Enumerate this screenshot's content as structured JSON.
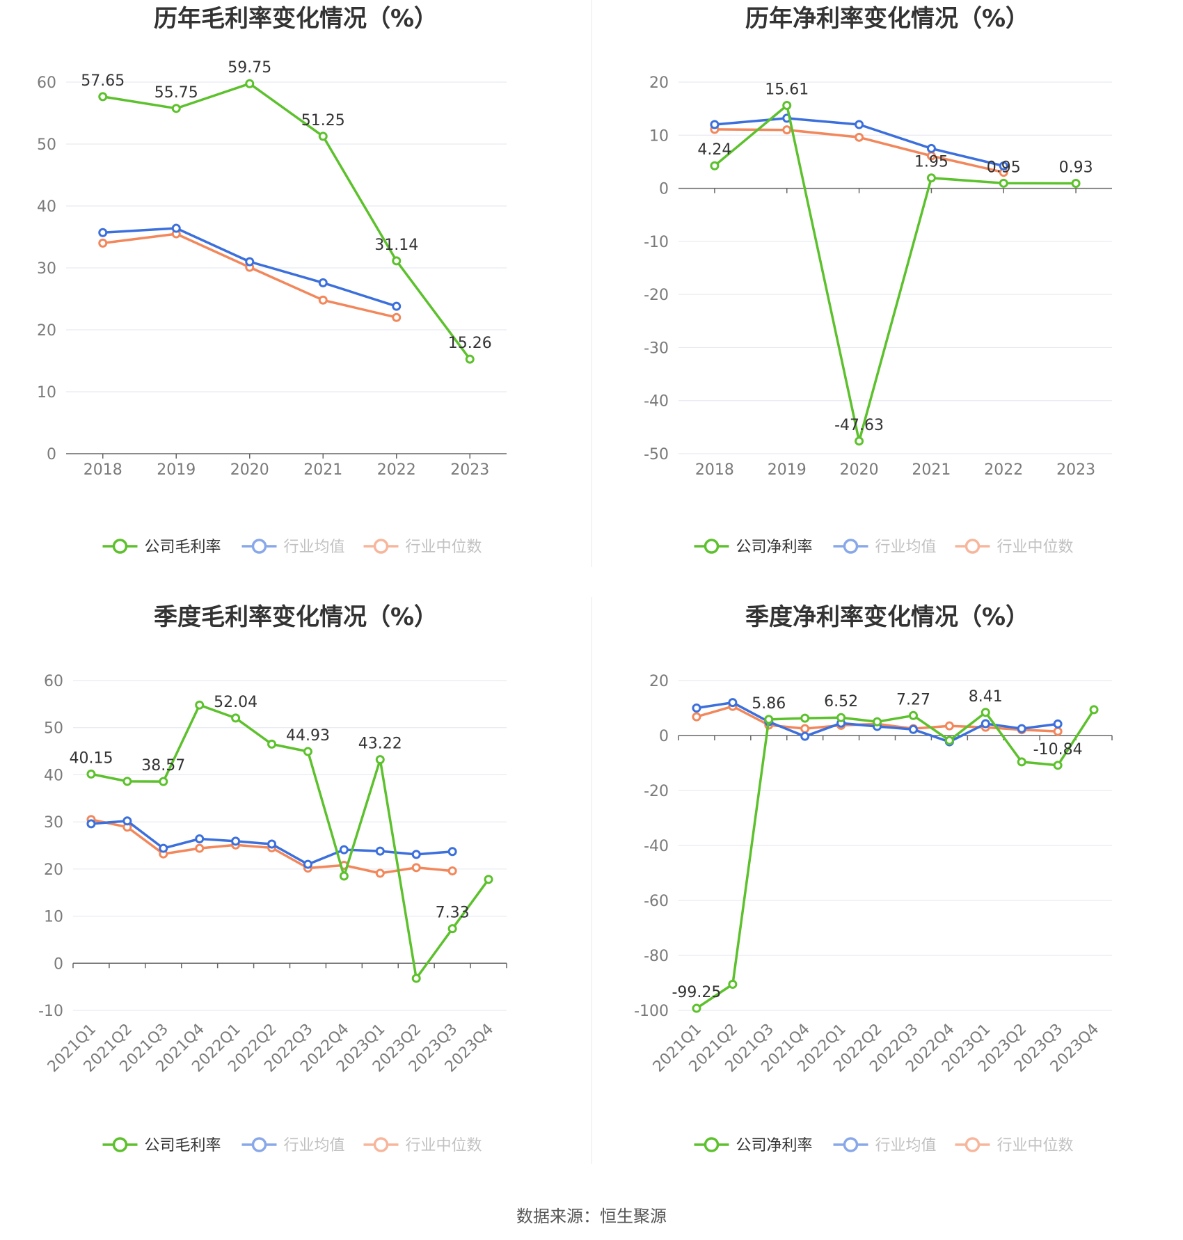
{
  "source": "数据来源：恒生聚源",
  "colors": {
    "company": "#5cc12c",
    "avg": "#3b6fdc",
    "median": "#f2875b"
  },
  "chart_data": [
    {
      "id": "annual-gross",
      "type": "line",
      "title": "历年毛利率变化情况（%）",
      "categories": [
        "2018",
        "2019",
        "2020",
        "2021",
        "2022",
        "2023"
      ],
      "ylim": [
        0,
        60
      ],
      "yticks": [
        0,
        10,
        20,
        30,
        40,
        50,
        60
      ],
      "rotate_x": false,
      "series": [
        {
          "name": "公司毛利率",
          "key": "company",
          "values": [
            57.65,
            55.75,
            59.75,
            51.25,
            31.14,
            15.26
          ]
        },
        {
          "name": "行业均值",
          "key": "avg",
          "values": [
            35.7,
            36.4,
            31.0,
            27.6,
            23.8,
            null
          ]
        },
        {
          "name": "行业中位数",
          "key": "median",
          "values": [
            34.0,
            35.5,
            30.1,
            24.8,
            22.0,
            null
          ]
        }
      ],
      "data_labels": [
        "57.65",
        "55.75",
        "59.75",
        "51.25",
        "31.14",
        "15.26"
      ]
    },
    {
      "id": "annual-net",
      "type": "line",
      "title": "历年净利率变化情况（%）",
      "categories": [
        "2018",
        "2019",
        "2020",
        "2021",
        "2022",
        "2023"
      ],
      "ylim": [
        -50,
        20
      ],
      "yticks": [
        -50,
        -40,
        -30,
        -20,
        -10,
        0,
        10,
        20
      ],
      "rotate_x": false,
      "series": [
        {
          "name": "公司净利率",
          "key": "company",
          "values": [
            4.24,
            15.61,
            -47.63,
            1.95,
            0.95,
            0.93
          ]
        },
        {
          "name": "行业均值",
          "key": "avg",
          "values": [
            12.0,
            13.2,
            12.0,
            7.5,
            4.2,
            null
          ]
        },
        {
          "name": "行业中位数",
          "key": "median",
          "values": [
            11.1,
            11.0,
            9.6,
            6.1,
            3.0,
            null
          ]
        }
      ],
      "data_labels": [
        "4.24",
        "15.61",
        "-47.63",
        "1.95",
        "0.95",
        "0.93"
      ]
    },
    {
      "id": "quarterly-gross",
      "type": "line",
      "title": "季度毛利率变化情况（%）",
      "categories": [
        "2021Q1",
        "2021Q2",
        "2021Q3",
        "2021Q4",
        "2022Q1",
        "2022Q2",
        "2022Q3",
        "2022Q4",
        "2023Q1",
        "2023Q2",
        "2023Q3",
        "2023Q4"
      ],
      "ylim": [
        -10,
        60
      ],
      "yticks": [
        -10,
        0,
        10,
        20,
        30,
        40,
        50,
        60
      ],
      "rotate_x": true,
      "series": [
        {
          "name": "公司毛利率",
          "key": "company",
          "values": [
            40.15,
            38.6,
            38.57,
            54.8,
            52.04,
            46.5,
            44.93,
            18.5,
            43.22,
            -3.2,
            7.33,
            17.8
          ]
        },
        {
          "name": "行业均值",
          "key": "avg",
          "values": [
            29.6,
            30.2,
            24.4,
            26.4,
            25.9,
            25.3,
            21.0,
            24.1,
            23.8,
            23.1,
            23.7,
            null
          ]
        },
        {
          "name": "行业中位数",
          "key": "median",
          "values": [
            30.5,
            28.9,
            23.2,
            24.4,
            25.1,
            24.5,
            20.2,
            20.8,
            19.1,
            20.3,
            19.6,
            null
          ]
        }
      ],
      "data_labels": [
        "40.15",
        "",
        "38.57",
        "",
        "52.04",
        "",
        "44.93",
        "",
        "43.22",
        "",
        "7.33",
        ""
      ]
    },
    {
      "id": "quarterly-net",
      "type": "line",
      "title": "季度净利率变化情况（%）",
      "categories": [
        "2021Q1",
        "2021Q2",
        "2021Q3",
        "2021Q4",
        "2022Q1",
        "2022Q2",
        "2022Q3",
        "2022Q4",
        "2023Q1",
        "2023Q2",
        "2023Q3",
        "2023Q4"
      ],
      "ylim": [
        -100,
        20
      ],
      "yticks": [
        -100,
        -80,
        -60,
        -40,
        -20,
        0,
        20
      ],
      "rotate_x": true,
      "series": [
        {
          "name": "公司净利率",
          "key": "company",
          "values": [
            -99.25,
            -90.5,
            5.86,
            6.3,
            6.52,
            5.0,
            7.27,
            -1.8,
            8.41,
            -9.6,
            -10.84,
            9.4
          ]
        },
        {
          "name": "行业均值",
          "key": "avg",
          "values": [
            10.0,
            12.0,
            5.0,
            -0.3,
            4.5,
            3.3,
            2.2,
            -2.3,
            4.3,
            2.5,
            4.2,
            null
          ]
        },
        {
          "name": "行业中位数",
          "key": "median",
          "values": [
            6.8,
            10.6,
            3.8,
            2.5,
            3.7,
            4.2,
            2.5,
            3.5,
            3.0,
            2.1,
            1.5,
            null
          ]
        }
      ],
      "data_labels": [
        "-99.25",
        "",
        "5.86",
        "",
        "6.52",
        "",
        "7.27",
        "",
        "8.41",
        "",
        "-10.84",
        ""
      ]
    }
  ]
}
